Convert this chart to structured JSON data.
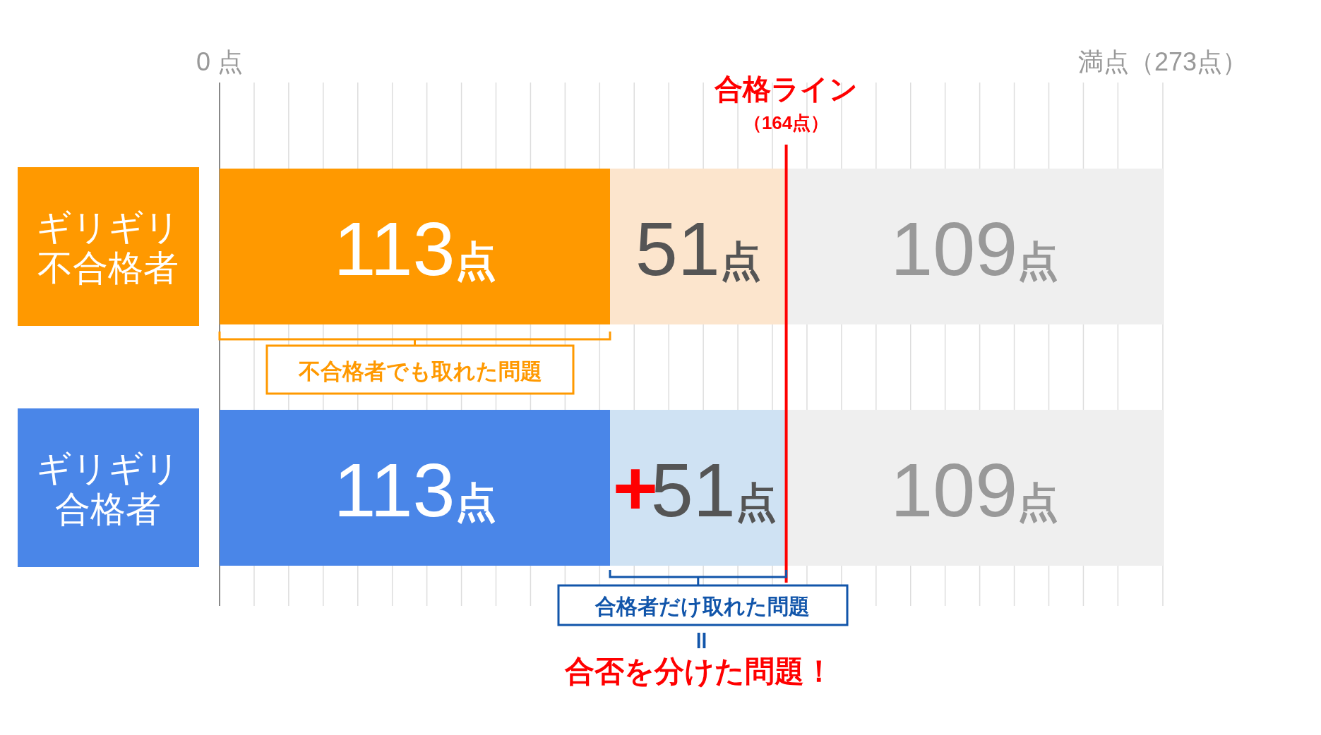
{
  "chart_data": {
    "type": "bar",
    "orientation": "horizontal",
    "stacked": true,
    "categories": [
      "ギリギリ不合格者",
      "ギリギリ合格者"
    ],
    "series": [
      {
        "colors": [
          "#ff9900",
          "#4a86e8"
        ],
        "values": [
          113,
          113
        ],
        "value_labels": [
          "113点",
          "113点"
        ]
      },
      {
        "colors": [
          "#fce5cd",
          "#cfe2f3"
        ],
        "values": [
          51,
          51
        ],
        "value_labels": [
          "51点",
          "51点"
        ]
      },
      {
        "colors": [
          "#efefef",
          "#efefef"
        ],
        "values": [
          109,
          109
        ],
        "value_labels": [
          "109点",
          "109点"
        ]
      }
    ],
    "xlim": [
      0,
      273
    ],
    "xticks": [
      {
        "value": 0,
        "label": "0 点"
      },
      {
        "value": 10,
        "label": null
      },
      {
        "value": 20,
        "label": null
      },
      {
        "value": 30,
        "label": null
      },
      {
        "value": 40,
        "label": null
      },
      {
        "value": 50,
        "label": null
      },
      {
        "value": 60,
        "label": null
      },
      {
        "value": 70,
        "label": null
      },
      {
        "value": 80,
        "label": null
      },
      {
        "value": 90,
        "label": null
      },
      {
        "value": 100,
        "label": null
      },
      {
        "value": 110,
        "label": null
      },
      {
        "value": 120,
        "label": null
      },
      {
        "value": 130,
        "label": null
      },
      {
        "value": 140,
        "label": null
      },
      {
        "value": 150,
        "label": null
      },
      {
        "value": 160,
        "label": null
      },
      {
        "value": 170,
        "label": null
      },
      {
        "value": 180,
        "label": null
      },
      {
        "value": 190,
        "label": null
      },
      {
        "value": 200,
        "label": null
      },
      {
        "value": 210,
        "label": null
      },
      {
        "value": 220,
        "label": null
      },
      {
        "value": 230,
        "label": null
      },
      {
        "value": 240,
        "label": null
      },
      {
        "value": 250,
        "label": null
      },
      {
        "value": 260,
        "label": null
      },
      {
        "value": 273,
        "label": "満点（273点）"
      }
    ],
    "grid": "x",
    "ref_lines": [
      {
        "axis": "x",
        "value": 164,
        "label": "合格ライン（164点）",
        "color": "#ff0000"
      }
    ],
    "annotations": [
      "不合格者でも取れた問題",
      "合格者だけ取れた問題",
      "＝",
      "合否を分けた問題！",
      "+"
    ]
  }
}
